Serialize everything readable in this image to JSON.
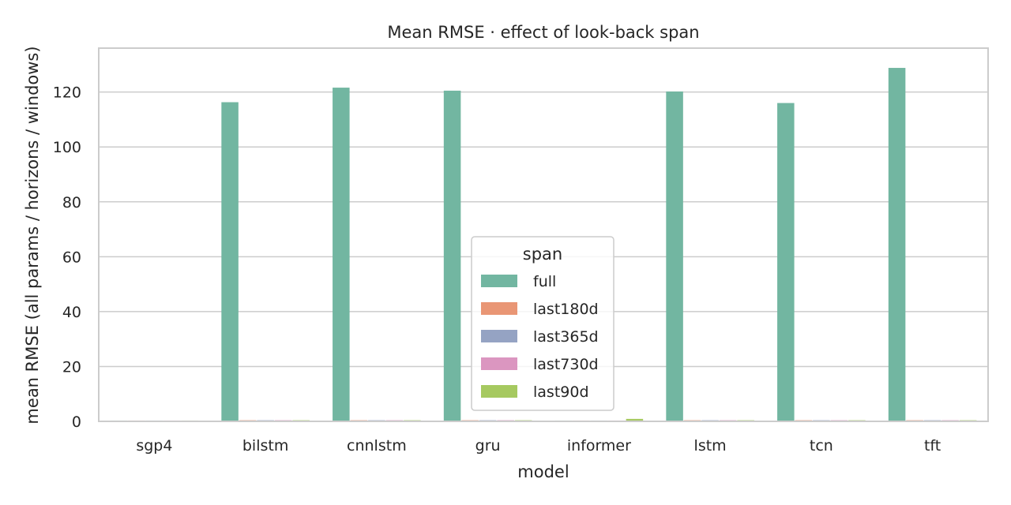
{
  "chart_data": {
    "type": "bar",
    "title": "Mean RMSE · effect of look-back span",
    "xlabel": "model",
    "ylabel": "mean RMSE (all params / horizons / windows)",
    "categories": [
      "sgp4",
      "bilstm",
      "cnnlstm",
      "gru",
      "informer",
      "lstm",
      "tcn",
      "tft"
    ],
    "ylim": [
      0,
      136
    ],
    "yticks": [
      0,
      20,
      40,
      60,
      80,
      100,
      120
    ],
    "grid": true,
    "legend": {
      "title": "span",
      "placement": "lower-center"
    },
    "series": [
      {
        "name": "full",
        "color": "#72b6a1",
        "values": [
          0.3,
          116.3,
          121.6,
          120.5,
          0.3,
          120.2,
          116.0,
          128.8
        ]
      },
      {
        "name": "last180d",
        "color": "#e99675",
        "values": [
          0.3,
          0.4,
          0.4,
          0.4,
          0.3,
          0.4,
          0.4,
          0.4
        ]
      },
      {
        "name": "last365d",
        "color": "#95a3c3",
        "values": [
          0.3,
          0.4,
          0.4,
          0.4,
          0.3,
          0.4,
          0.4,
          0.4
        ]
      },
      {
        "name": "last730d",
        "color": "#db96c0",
        "values": [
          0.3,
          0.4,
          0.4,
          0.4,
          0.3,
          0.4,
          0.4,
          0.4
        ]
      },
      {
        "name": "last90d",
        "color": "#a6c960",
        "values": [
          0.3,
          0.4,
          0.4,
          0.4,
          0.9,
          0.4,
          0.4,
          0.4
        ]
      }
    ]
  }
}
